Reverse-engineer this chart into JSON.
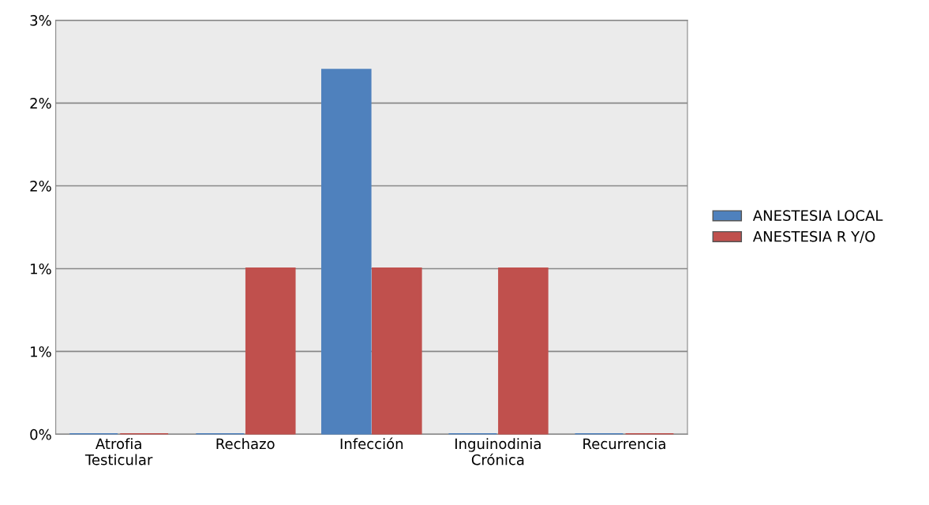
{
  "chart_data": {
    "type": "bar",
    "categories": [
      "Atrofia\nTesticular",
      "Rechazo",
      "Infección",
      "Inguinodinia\nCrónica",
      "Recurrencia"
    ],
    "series": [
      {
        "name": "ANESTESIA LOCAL",
        "color": "#4f81bd",
        "values": [
          0,
          0,
          2.2,
          0,
          0
        ]
      },
      {
        "name": "ANESTESIA R Y/O",
        "color": "#c0504d",
        "values": [
          0,
          1.0,
          1.0,
          1.0,
          0
        ]
      }
    ],
    "ylim": [
      0,
      2.5
    ],
    "yticks": [
      {
        "value": 0,
        "label": "0%"
      },
      {
        "value": 0.5,
        "label": "1%"
      },
      {
        "value": 1.0,
        "label": "1%"
      },
      {
        "value": 1.5,
        "label": "2%"
      },
      {
        "value": 2.0,
        "label": "2%"
      },
      {
        "value": 2.5,
        "label": "3%"
      }
    ],
    "grid": "y",
    "legend": "right"
  }
}
